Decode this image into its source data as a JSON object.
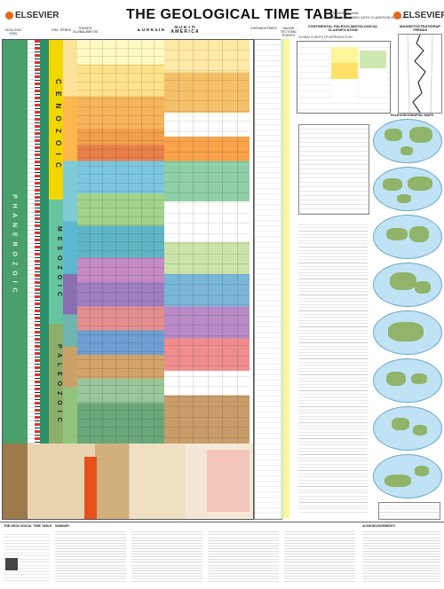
{
  "header": {
    "logo_left": "ELSEVIER",
    "logo_right": "ELSEVIER",
    "title": "THE GEOLOGICAL TIME TABLE",
    "byline_1": "BY DAVID J. VAN",
    "byline_2": "NEW PUBLISHED WITH CLARKSON ELSEVIER"
  },
  "columns": {
    "eon": "GEOLOGIC EON",
    "era": "ERA",
    "period": "PERIOD",
    "epoch": "EPOCH",
    "stages": "STAGES GLOBAL/BRITISH",
    "europe": "E U R A S I A",
    "north_america": "N O R T H\nA M E R I C A",
    "chrono": "CHRONOSTRATIGRAPHY",
    "orogenies": "MAJOR TECTONIC EVENTS",
    "paleo": "CONTINENTAL PALEOCLIMATOLOGICAL CLASSIFICATION",
    "magnetic": "MAGNETOSTRATIGRAPHIC TRENDS"
  },
  "eras": {
    "cenozoic": "C E N O Z O I C",
    "mesozoic": "M E S O Z O I C",
    "paleozoic": "P A L E O Z O I C",
    "eon_label": "P H A N E R O Z O I C"
  },
  "right_panel": {
    "globes_title": "PALEOGEOGRAPHIC MAPS",
    "global_events": "GLOBAL EVENTS OF INTRODUCTION"
  },
  "footer": {
    "title": "THE GEOLOGICAL TIME TABLE",
    "summary": "SUMMARY",
    "acknowledgements": "ACKNOWLEDGEMENTS"
  },
  "colors": {
    "cenozoic": "#f2d600",
    "mesozoic": "#67c5a0",
    "paleozoic": "#8cb06c",
    "precambrian": "#c4a06e"
  }
}
